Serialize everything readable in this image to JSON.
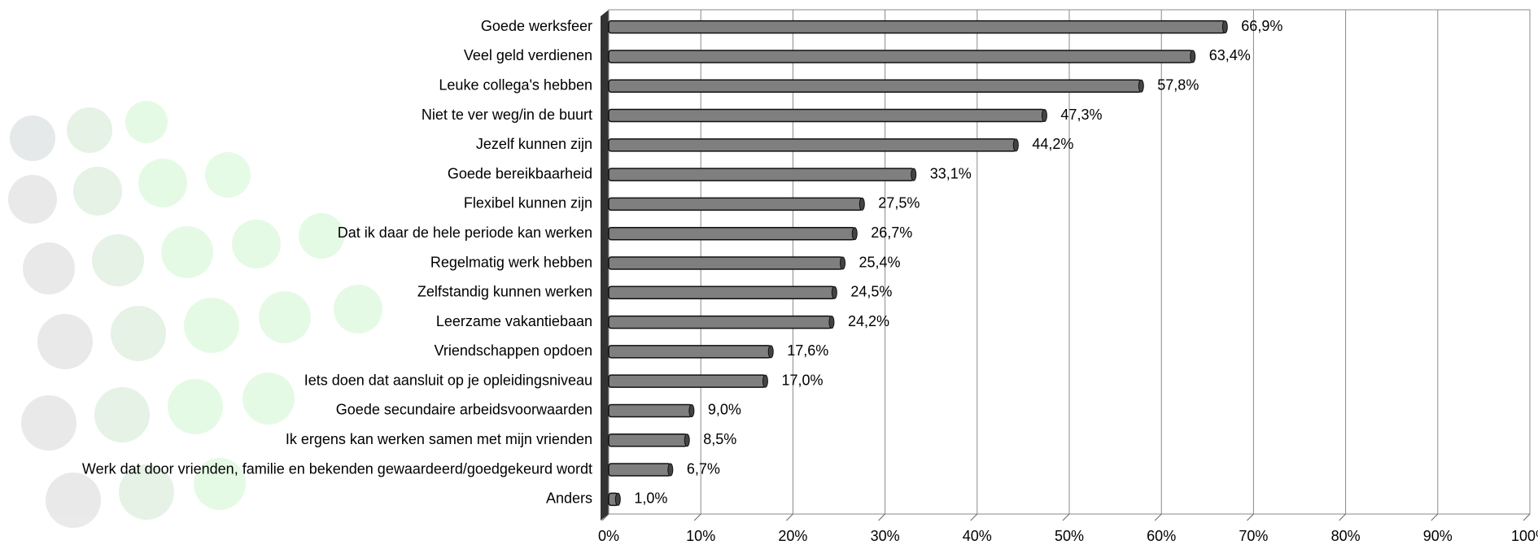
{
  "chart_data": {
    "type": "bar",
    "orientation": "horizontal",
    "categories": [
      "Goede werksfeer",
      "Veel geld verdienen",
      "Leuke collega's hebben",
      "Niet te ver weg/in de buurt",
      "Jezelf kunnen zijn",
      "Goede bereikbaarheid",
      "Flexibel kunnen zijn",
      "Dat  ik daar de hele periode kan werken",
      "Regelmatig werk hebben",
      "Zelfstandig kunnen werken",
      "Leerzame vakantiebaan",
      "Vriendschappen opdoen",
      "Iets doen dat aansluit op je opleidingsniveau",
      "Goede secundaire arbeidsvoorwaarden",
      "Ik ergens kan werken samen met mijn vrienden",
      "Werk dat door vrienden, familie en bekenden gewaardeerd/goedgekeurd wordt",
      "Anders"
    ],
    "values": [
      66.9,
      63.4,
      57.8,
      47.3,
      44.2,
      33.1,
      27.5,
      26.7,
      25.4,
      24.5,
      24.2,
      17.6,
      17.0,
      9.0,
      8.5,
      6.7,
      1.0
    ],
    "value_labels": [
      "66,9%",
      "63,4%",
      "57,8%",
      "47,3%",
      "44,2%",
      "33,1%",
      "27,5%",
      "26,7%",
      "25,4%",
      "24,5%",
      "24,2%",
      "17,6%",
      "17,0%",
      "9,0%",
      "8,5%",
      "6,7%",
      "1,0%"
    ],
    "color": "#7f7f7f",
    "xlim": [
      0,
      100
    ],
    "xticks": [
      {
        "value": 0,
        "label": "0%"
      },
      {
        "value": 10,
        "label": "10%"
      },
      {
        "value": 20,
        "label": "20%"
      },
      {
        "value": 30,
        "label": "30%"
      },
      {
        "value": 40,
        "label": "40%"
      },
      {
        "value": 50,
        "label": "50%"
      },
      {
        "value": 60,
        "label": "60%"
      },
      {
        "value": 70,
        "label": "70%"
      },
      {
        "value": 80,
        "label": "80%"
      },
      {
        "value": 90,
        "label": "90%"
      },
      {
        "value": 100,
        "label": "100%"
      }
    ],
    "grid": true
  }
}
